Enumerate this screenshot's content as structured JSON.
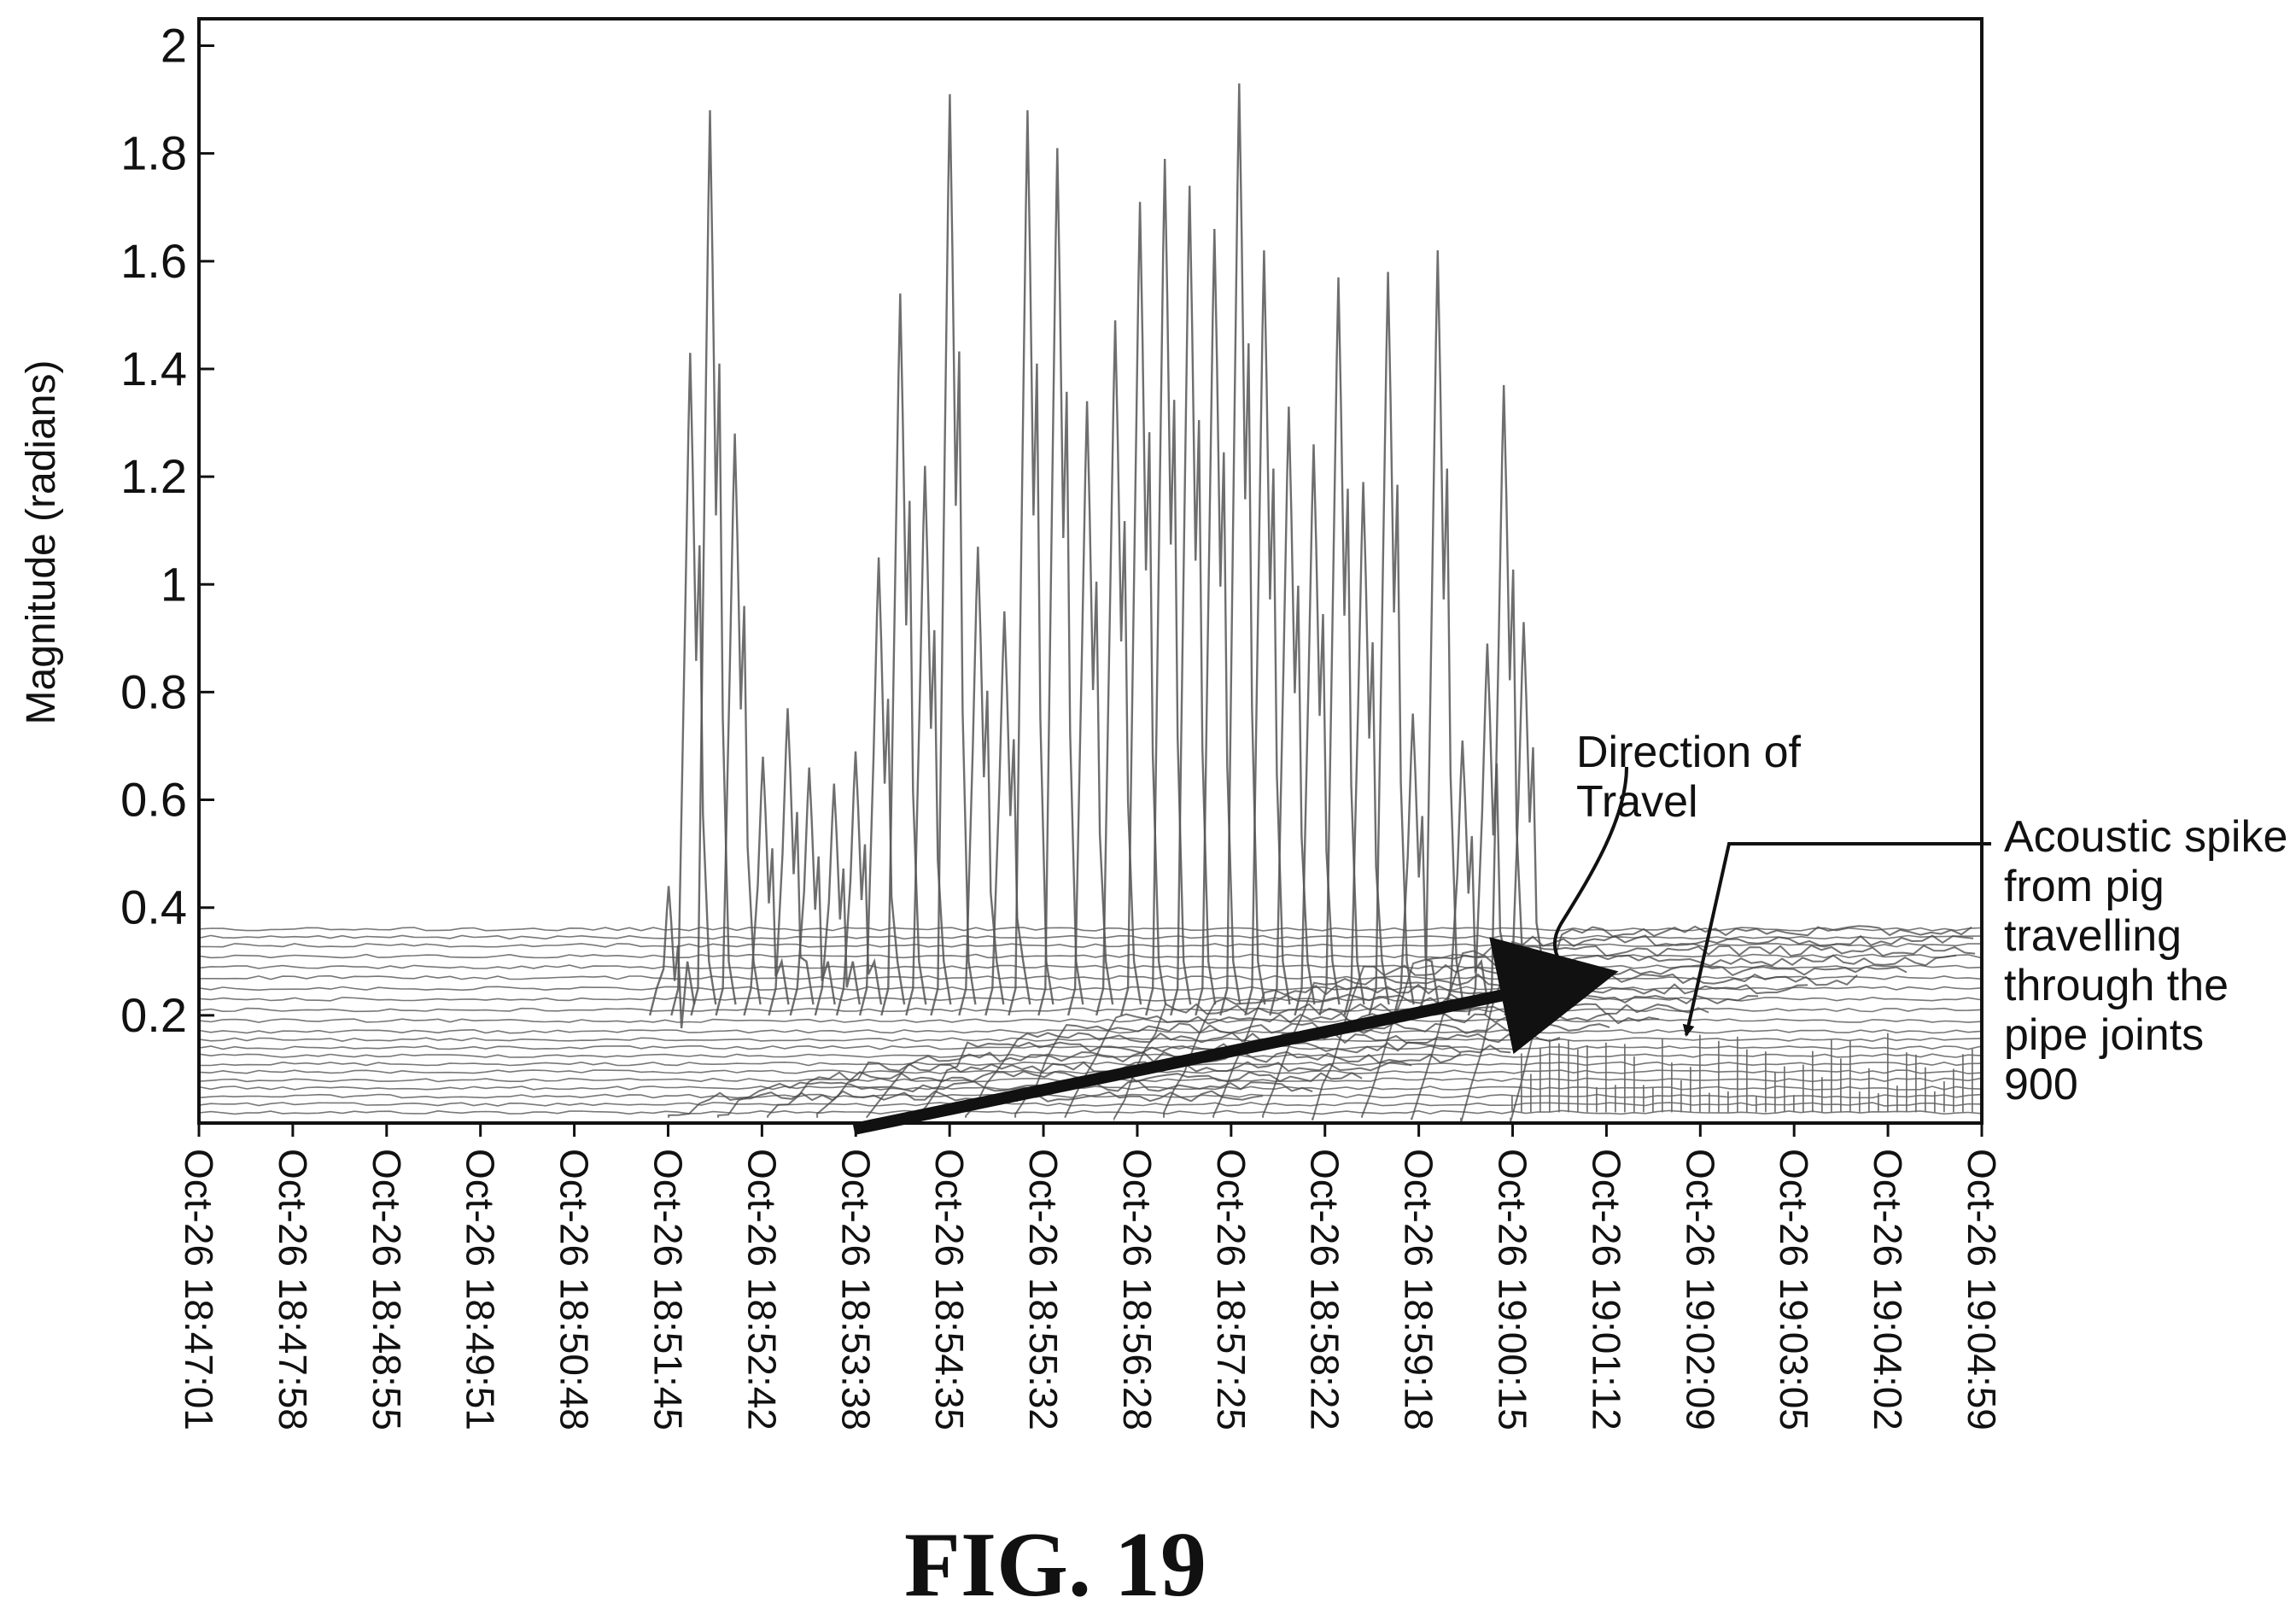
{
  "figure_label": "FIG. 19",
  "chart_data": {
    "type": "line",
    "title": "",
    "xlabel": "",
    "ylabel": "Magnitude (radians)",
    "ylim": [
      0,
      2.05
    ],
    "yticks": [
      "0.2",
      "0.4",
      "0.6",
      "0.8",
      "1",
      "1.2",
      "1.4",
      "1.6",
      "1.8",
      "2"
    ],
    "xticks": [
      "Oct-26 18:47:01",
      "Oct-26 18:47:58",
      "Oct-26 18:48:55",
      "Oct-26 18:49:51",
      "Oct-26 18:50:48",
      "Oct-26 18:51:45",
      "Oct-26 18:52:42",
      "Oct-26 18:53:38",
      "Oct-26 18:54:35",
      "Oct-26 18:55:32",
      "Oct-26 18:56:28",
      "Oct-26 18:57:25",
      "Oct-26 18:58:22",
      "Oct-26 18:59:18",
      "Oct-26 19:00:15",
      "Oct-26 19:01:12",
      "Oct-26 19:02:09",
      "Oct-26 19:03:05",
      "Oct-26 19:04:02",
      "Oct-26 19:04:59"
    ],
    "grid": false,
    "legend": "none",
    "line_color": "#555555",
    "baseline_levels": [
      0.02,
      0.035,
      0.05,
      0.065,
      0.08,
      0.095,
      0.11,
      0.125,
      0.14,
      0.155,
      0.17,
      0.19,
      0.21,
      0.23,
      0.25,
      0.27,
      0.29,
      0.31,
      0.33,
      0.345,
      0.36
    ],
    "spikes": [
      {
        "x": "Oct-26 18:51:45",
        "peak": 0.44
      },
      {
        "x": "Oct-26 18:51:58",
        "peak": 1.43
      },
      {
        "x": "Oct-26 18:52:10",
        "peak": 1.88
      },
      {
        "x": "Oct-26 18:52:25",
        "peak": 1.28
      },
      {
        "x": "Oct-26 18:52:42",
        "peak": 0.68
      },
      {
        "x": "Oct-26 18:52:57",
        "peak": 0.77
      },
      {
        "x": "Oct-26 18:53:10",
        "peak": 0.66
      },
      {
        "x": "Oct-26 18:53:25",
        "peak": 0.63
      },
      {
        "x": "Oct-26 18:53:38",
        "peak": 0.69
      },
      {
        "x": "Oct-26 18:53:52",
        "peak": 1.05
      },
      {
        "x": "Oct-26 18:54:05",
        "peak": 1.54
      },
      {
        "x": "Oct-26 18:54:20",
        "peak": 1.22
      },
      {
        "x": "Oct-26 18:54:35",
        "peak": 1.91
      },
      {
        "x": "Oct-26 18:54:52",
        "peak": 1.07
      },
      {
        "x": "Oct-26 18:55:08",
        "peak": 0.95
      },
      {
        "x": "Oct-26 18:55:22",
        "peak": 1.88
      },
      {
        "x": "Oct-26 18:55:40",
        "peak": 1.81
      },
      {
        "x": "Oct-26 18:55:58",
        "peak": 1.34
      },
      {
        "x": "Oct-26 18:56:15",
        "peak": 1.49
      },
      {
        "x": "Oct-26 18:56:30",
        "peak": 1.71
      },
      {
        "x": "Oct-26 18:56:45",
        "peak": 1.79
      },
      {
        "x": "Oct-26 18:57:00",
        "peak": 1.74
      },
      {
        "x": "Oct-26 18:57:15",
        "peak": 1.66
      },
      {
        "x": "Oct-26 18:57:30",
        "peak": 1.93
      },
      {
        "x": "Oct-26 18:57:45",
        "peak": 1.62
      },
      {
        "x": "Oct-26 18:58:00",
        "peak": 1.33
      },
      {
        "x": "Oct-26 18:58:15",
        "peak": 1.26
      },
      {
        "x": "Oct-26 18:58:30",
        "peak": 1.57
      },
      {
        "x": "Oct-26 18:58:45",
        "peak": 1.19
      },
      {
        "x": "Oct-26 18:59:00",
        "peak": 1.58
      },
      {
        "x": "Oct-26 18:59:15",
        "peak": 0.76
      },
      {
        "x": "Oct-26 18:59:30",
        "peak": 1.62
      },
      {
        "x": "Oct-26 18:59:45",
        "peak": 0.71
      },
      {
        "x": "Oct-26 19:00:00",
        "peak": 0.89
      },
      {
        "x": "Oct-26 19:00:10",
        "peak": 1.37
      },
      {
        "x": "Oct-26 19:00:22",
        "peak": 0.93
      }
    ],
    "annotations": [
      {
        "text": [
          "Direction of",
          "Travel"
        ]
      },
      {
        "text": [
          "Acoustic spike",
          "from pig",
          "travelling",
          "through the",
          "pipe joints",
          "900"
        ]
      }
    ]
  }
}
